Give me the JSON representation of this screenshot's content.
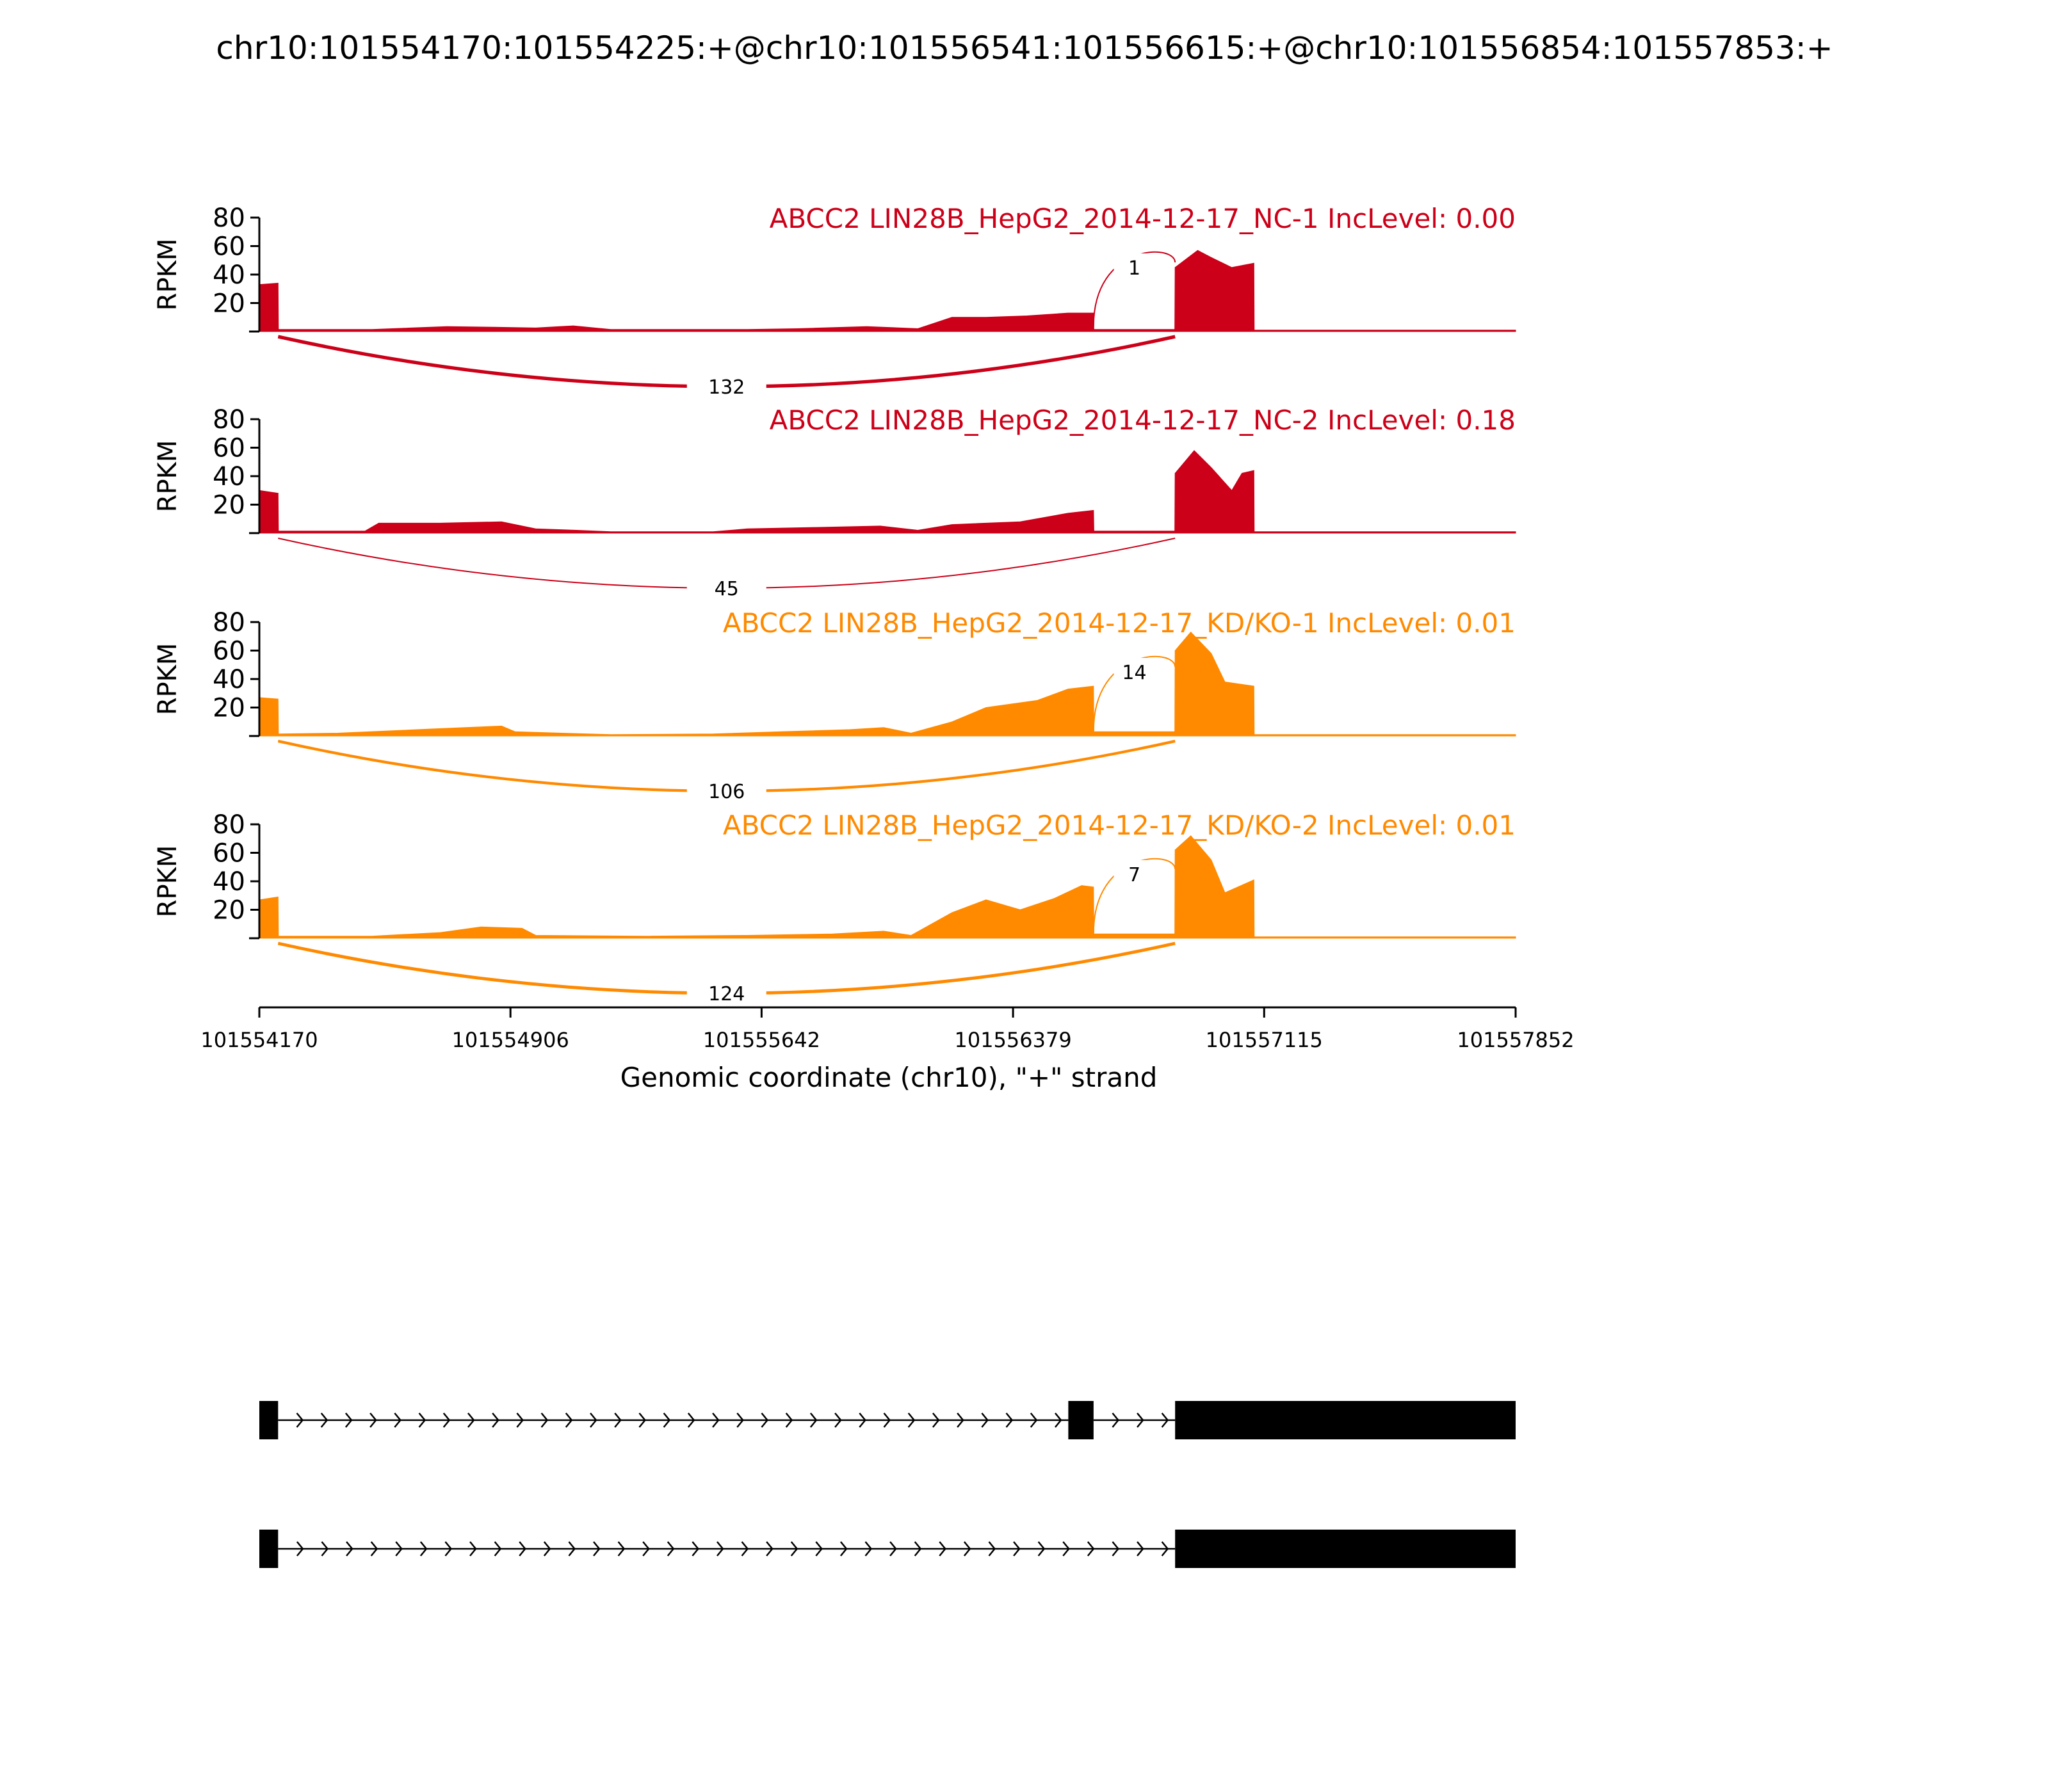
{
  "figure": {
    "title": "chr10:101554170:101554225:+@chr10:101556541:101556615:+@chr10:101556854:101557853:+"
  },
  "colors": {
    "nc": "#cc0018",
    "kd": "#ff8a00",
    "gene_model": "#000000",
    "axis": "#000000"
  },
  "chart_data": {
    "type": "area",
    "description_kind": "sashimi",
    "x_axis": {
      "label": "Genomic coordinate (chr10), \"+\" strand",
      "range": [
        101554170,
        101557852
      ],
      "ticks": [
        101554170,
        101554906,
        101555642,
        101556379,
        101557115,
        101557852
      ]
    },
    "y_axis": {
      "label": "RPKM",
      "range": [
        0,
        80
      ],
      "ticks": [
        20,
        40,
        60,
        80
      ]
    },
    "exons": [
      {
        "start": 101554170,
        "end": 101554225
      },
      {
        "start": 101556541,
        "end": 101556615
      },
      {
        "start": 101556854,
        "end": 101557853
      }
    ],
    "series": [
      {
        "title": "ABCC2 LIN28B_HepG2_2014-12-17_NC-1 IncLevel: 0.00",
        "group": "nc",
        "junctions": [
          {
            "start": 101554225,
            "end": 101556854,
            "reads": "132",
            "side": "below"
          },
          {
            "start": 101556615,
            "end": 101556854,
            "reads": "1",
            "side": "above"
          }
        ],
        "coverage": [
          {
            "x": 101554170,
            "y": 33
          },
          {
            "x": 101554225,
            "y": 34
          },
          {
            "x": 101554226,
            "y": 1.5
          },
          {
            "x": 101554500,
            "y": 1.5
          },
          {
            "x": 101554720,
            "y": 3.5
          },
          {
            "x": 101554860,
            "y": 3
          },
          {
            "x": 101554980,
            "y": 2.5
          },
          {
            "x": 101555090,
            "y": 4
          },
          {
            "x": 101555200,
            "y": 1.5
          },
          {
            "x": 101555600,
            "y": 1.5
          },
          {
            "x": 101555750,
            "y": 2
          },
          {
            "x": 101555950,
            "y": 3.5
          },
          {
            "x": 101556100,
            "y": 2
          },
          {
            "x": 101556200,
            "y": 10
          },
          {
            "x": 101556300,
            "y": 10
          },
          {
            "x": 101556420,
            "y": 11
          },
          {
            "x": 101556540,
            "y": 13
          },
          {
            "x": 101556615,
            "y": 13
          },
          {
            "x": 101556616,
            "y": 1.5
          },
          {
            "x": 101556853,
            "y": 1.5
          },
          {
            "x": 101556854,
            "y": 45
          },
          {
            "x": 101556920,
            "y": 57
          },
          {
            "x": 101556960,
            "y": 52
          },
          {
            "x": 101557020,
            "y": 45
          },
          {
            "x": 101557085,
            "y": 48
          },
          {
            "x": 101557086,
            "y": 1
          },
          {
            "x": 101557852,
            "y": 1
          }
        ]
      },
      {
        "title": "ABCC2 LIN28B_HepG2_2014-12-17_NC-2 IncLevel: 0.18",
        "group": "nc",
        "junctions": [
          {
            "start": 101554225,
            "end": 101556854,
            "reads": "45",
            "side": "below"
          }
        ],
        "coverage": [
          {
            "x": 101554170,
            "y": 30
          },
          {
            "x": 101554225,
            "y": 28
          },
          {
            "x": 101554226,
            "y": 1.5
          },
          {
            "x": 101554480,
            "y": 1.5
          },
          {
            "x": 101554520,
            "y": 7
          },
          {
            "x": 101554700,
            "y": 7
          },
          {
            "x": 101554880,
            "y": 8
          },
          {
            "x": 101554980,
            "y": 3
          },
          {
            "x": 101555100,
            "y": 2
          },
          {
            "x": 101555200,
            "y": 1
          },
          {
            "x": 101555500,
            "y": 1
          },
          {
            "x": 101555600,
            "y": 3
          },
          {
            "x": 101555800,
            "y": 4
          },
          {
            "x": 101555990,
            "y": 5
          },
          {
            "x": 101556100,
            "y": 2
          },
          {
            "x": 101556200,
            "y": 6
          },
          {
            "x": 101556400,
            "y": 8
          },
          {
            "x": 101556540,
            "y": 14
          },
          {
            "x": 101556615,
            "y": 16
          },
          {
            "x": 101556616,
            "y": 1.5
          },
          {
            "x": 101556853,
            "y": 1.5
          },
          {
            "x": 101556854,
            "y": 42
          },
          {
            "x": 101556910,
            "y": 58
          },
          {
            "x": 101556960,
            "y": 46
          },
          {
            "x": 101557020,
            "y": 30
          },
          {
            "x": 101557050,
            "y": 42
          },
          {
            "x": 101557085,
            "y": 44
          },
          {
            "x": 101557086,
            "y": 1
          },
          {
            "x": 101557852,
            "y": 1
          }
        ]
      },
      {
        "title": "ABCC2 LIN28B_HepG2_2014-12-17_KD/KO-1 IncLevel: 0.01",
        "group": "kd",
        "junctions": [
          {
            "start": 101554225,
            "end": 101556854,
            "reads": "106",
            "side": "below"
          },
          {
            "start": 101556615,
            "end": 101556854,
            "reads": "14",
            "side": "above"
          }
        ],
        "coverage": [
          {
            "x": 101554170,
            "y": 27
          },
          {
            "x": 101554225,
            "y": 26
          },
          {
            "x": 101554226,
            "y": 1.5
          },
          {
            "x": 101554400,
            "y": 2
          },
          {
            "x": 101554680,
            "y": 5
          },
          {
            "x": 101554880,
            "y": 7
          },
          {
            "x": 101554920,
            "y": 3
          },
          {
            "x": 101555200,
            "y": 1
          },
          {
            "x": 101555500,
            "y": 1.5
          },
          {
            "x": 101555700,
            "y": 3
          },
          {
            "x": 101555900,
            "y": 4.5
          },
          {
            "x": 101556000,
            "y": 6
          },
          {
            "x": 101556080,
            "y": 2
          },
          {
            "x": 101556200,
            "y": 10
          },
          {
            "x": 101556300,
            "y": 20
          },
          {
            "x": 101556450,
            "y": 25
          },
          {
            "x": 101556540,
            "y": 33
          },
          {
            "x": 101556615,
            "y": 35
          },
          {
            "x": 101556616,
            "y": 3
          },
          {
            "x": 101556853,
            "y": 3
          },
          {
            "x": 101556854,
            "y": 60
          },
          {
            "x": 101556900,
            "y": 73
          },
          {
            "x": 101556960,
            "y": 58
          },
          {
            "x": 101557000,
            "y": 38
          },
          {
            "x": 101557085,
            "y": 35
          },
          {
            "x": 101557086,
            "y": 1
          },
          {
            "x": 101557852,
            "y": 1
          }
        ]
      },
      {
        "title": "ABCC2 LIN28B_HepG2_2014-12-17_KD/KO-2 IncLevel: 0.01",
        "group": "kd",
        "junctions": [
          {
            "start": 101554225,
            "end": 101556854,
            "reads": "124",
            "side": "below"
          },
          {
            "start": 101556615,
            "end": 101556854,
            "reads": "7",
            "side": "above"
          }
        ],
        "coverage": [
          {
            "x": 101554170,
            "y": 27
          },
          {
            "x": 101554225,
            "y": 29
          },
          {
            "x": 101554226,
            "y": 1.5
          },
          {
            "x": 101554500,
            "y": 1.5
          },
          {
            "x": 101554700,
            "y": 4
          },
          {
            "x": 101554820,
            "y": 8
          },
          {
            "x": 101554940,
            "y": 7
          },
          {
            "x": 101554980,
            "y": 2
          },
          {
            "x": 101555300,
            "y": 1.5
          },
          {
            "x": 101555600,
            "y": 2
          },
          {
            "x": 101555850,
            "y": 3
          },
          {
            "x": 101556000,
            "y": 5
          },
          {
            "x": 101556080,
            "y": 2
          },
          {
            "x": 101556200,
            "y": 18
          },
          {
            "x": 101556300,
            "y": 27
          },
          {
            "x": 101556400,
            "y": 20
          },
          {
            "x": 101556500,
            "y": 28
          },
          {
            "x": 101556580,
            "y": 37
          },
          {
            "x": 101556615,
            "y": 36
          },
          {
            "x": 101556616,
            "y": 3
          },
          {
            "x": 101556853,
            "y": 3
          },
          {
            "x": 101556854,
            "y": 62
          },
          {
            "x": 101556900,
            "y": 72
          },
          {
            "x": 101556960,
            "y": 55
          },
          {
            "x": 101557000,
            "y": 32
          },
          {
            "x": 101557085,
            "y": 41
          },
          {
            "x": 101557086,
            "y": 1
          },
          {
            "x": 101557852,
            "y": 1
          }
        ]
      }
    ],
    "isoforms": [
      {
        "exons": [
          0,
          1,
          2
        ]
      },
      {
        "exons": [
          0,
          2
        ]
      }
    ]
  }
}
